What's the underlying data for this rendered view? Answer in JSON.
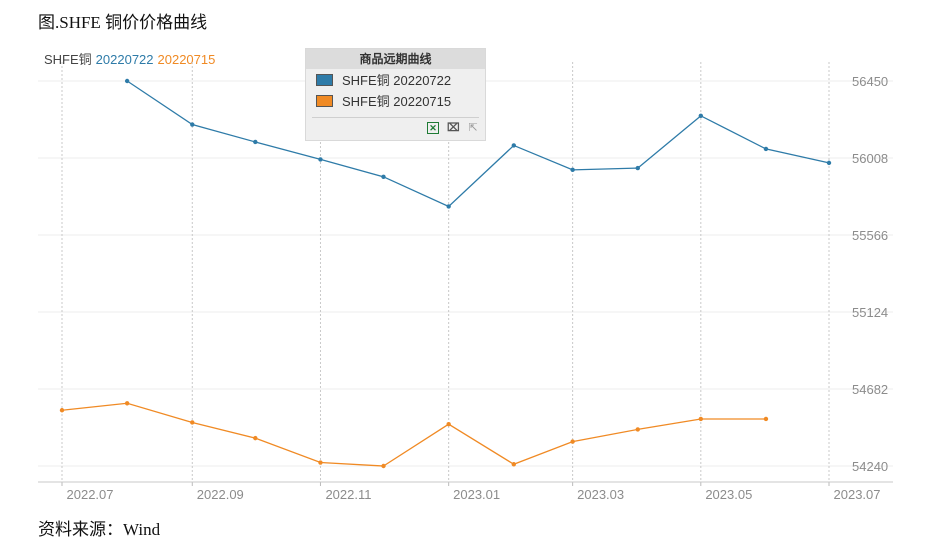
{
  "figure_title": "图.SHFE 铜价价格曲线",
  "source_note": "资料来源：Wind",
  "series_header": {
    "prefix": "SHFE铜",
    "first_date": "20220722",
    "second_date": "20220715"
  },
  "legend": {
    "title": "商品远期曲线",
    "items": [
      {
        "label": "SHFE铜 20220722",
        "color": "#2e7ba8"
      },
      {
        "label": "SHFE铜 20220715",
        "color": "#f08a24"
      }
    ],
    "tools": [
      "excel-export-icon",
      "crop-icon",
      "select-icon"
    ]
  },
  "colors": {
    "series_blue": "#2e7ba8",
    "series_orange": "#f08a24",
    "tick_label": "#8c8c8c"
  },
  "chart_data": {
    "type": "line",
    "title": "",
    "xlabel": "",
    "ylabel": "",
    "x_ticks": [
      "2022.07",
      "2022.09",
      "2022.11",
      "2023.01",
      "2023.03",
      "2023.05",
      "2023.07"
    ],
    "y_ticks": [
      54240,
      54682,
      55124,
      55566,
      56008,
      56450
    ],
    "ylim": [
      54140,
      56560
    ],
    "xlim": [
      "2022-07-01",
      "2023-07-01"
    ],
    "grid": true,
    "legend_position": "top-center",
    "series": [
      {
        "name": "SHFE铜 20220722",
        "color": "#2e7ba8",
        "points": [
          {
            "x": "2022-08-01",
            "y": 56450
          },
          {
            "x": "2022-09-01",
            "y": 56200
          },
          {
            "x": "2022-10-01",
            "y": 56100
          },
          {
            "x": "2022-11-01",
            "y": 56000
          },
          {
            "x": "2022-12-01",
            "y": 55900
          },
          {
            "x": "2023-01-01",
            "y": 55730
          },
          {
            "x": "2023-02-01",
            "y": 56080
          },
          {
            "x": "2023-03-01",
            "y": 55940
          },
          {
            "x": "2023-04-01",
            "y": 55950
          },
          {
            "x": "2023-05-01",
            "y": 56250
          },
          {
            "x": "2023-06-01",
            "y": 56060
          },
          {
            "x": "2023-07-01",
            "y": 55980
          }
        ]
      },
      {
        "name": "SHFE铜 20220715",
        "color": "#f08a24",
        "points": [
          {
            "x": "2022-07-01",
            "y": 54560
          },
          {
            "x": "2022-08-01",
            "y": 54600
          },
          {
            "x": "2022-09-01",
            "y": 54490
          },
          {
            "x": "2022-10-01",
            "y": 54400
          },
          {
            "x": "2022-11-01",
            "y": 54260
          },
          {
            "x": "2022-12-01",
            "y": 54240
          },
          {
            "x": "2023-01-01",
            "y": 54480
          },
          {
            "x": "2023-02-01",
            "y": 54250
          },
          {
            "x": "2023-03-01",
            "y": 54380
          },
          {
            "x": "2023-04-01",
            "y": 54450
          },
          {
            "x": "2023-05-01",
            "y": 54510
          },
          {
            "x": "2023-06-01",
            "y": 54510
          }
        ]
      }
    ]
  }
}
